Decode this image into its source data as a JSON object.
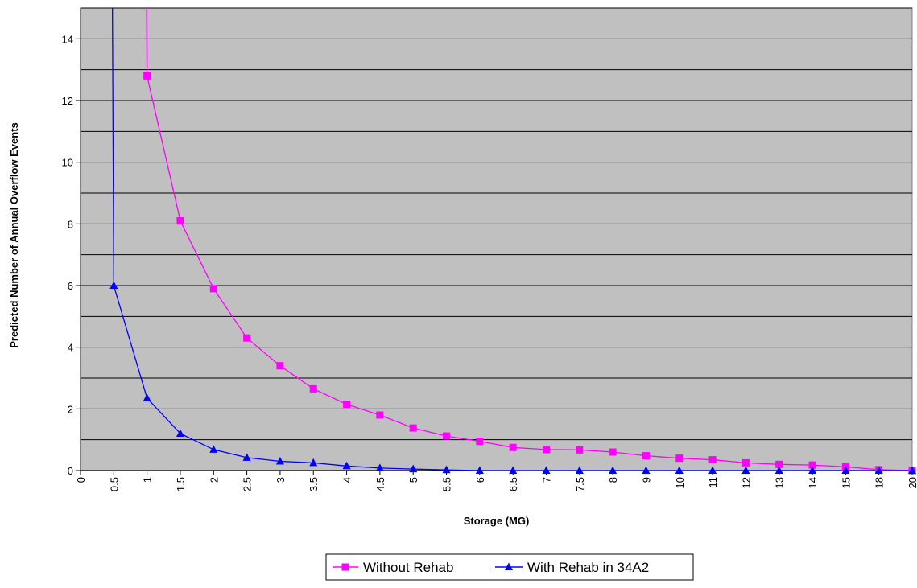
{
  "chart_data": {
    "type": "line",
    "title": "",
    "xlabel": "Storage (MG)",
    "ylabel": "Predicted Number of Annual Overflow Events",
    "x_categories": [
      "0",
      "0.5",
      "1",
      "1.5",
      "2",
      "2.5",
      "3",
      "3.5",
      "4",
      "4.5",
      "5",
      "5.5",
      "6",
      "6.5",
      "7",
      "7.5",
      "8",
      "9",
      "10",
      "11",
      "12",
      "13",
      "14",
      "15",
      "18",
      "20"
    ],
    "ylim": [
      0,
      15
    ],
    "yticks": [
      0,
      2,
      4,
      6,
      8,
      10,
      12,
      14
    ],
    "y_gridlines": [
      1,
      2,
      3,
      4,
      5,
      6,
      7,
      8,
      9,
      10,
      11,
      12,
      13,
      14,
      15
    ],
    "grid": true,
    "plot_background": "#c0c0c0",
    "legend": {
      "position": "bottom-center"
    },
    "series": [
      {
        "name": "Without Rehab",
        "color": "#ff00ff",
        "marker": "square",
        "values": [
          null,
          null,
          12.8,
          8.1,
          5.9,
          4.3,
          3.4,
          2.65,
          2.15,
          1.8,
          1.38,
          1.12,
          0.95,
          0.75,
          0.68,
          0.67,
          0.6,
          0.48,
          0.4,
          0.35,
          0.25,
          0.2,
          0.18,
          0.12,
          0.03,
          0.0
        ],
        "offscale_value_at_0": 40
      },
      {
        "name": "With Rehab in 34A2",
        "color": "#0000ff",
        "marker": "triangle",
        "values": [
          null,
          6.0,
          2.35,
          1.2,
          0.68,
          0.42,
          0.3,
          0.25,
          0.15,
          0.08,
          0.05,
          0.02,
          0,
          0,
          0,
          0,
          0,
          0,
          0,
          0,
          0,
          0,
          0,
          0,
          0,
          0
        ],
        "offscale_value_at_0": 40
      }
    ]
  }
}
